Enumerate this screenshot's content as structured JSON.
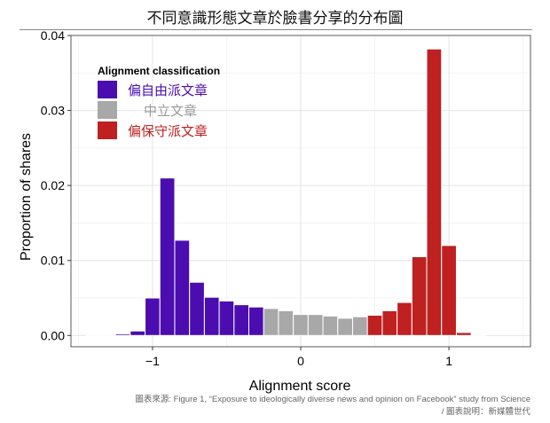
{
  "title": "不同意識形態文章於臉書分享的分布圖",
  "source": {
    "line1": "圖表來源: Figure 1, “Exposure to ideologically diverse news and opinion on Facebook” study from Science",
    "line2": "/ 圖表說明：新媒體世代"
  },
  "chart_data": {
    "type": "bar",
    "xlabel": "Alignment score",
    "ylabel": "Proportion of shares",
    "xlim": [
      -1.55,
      1.55
    ],
    "ylim": [
      -0.0015,
      0.04
    ],
    "xticks": [
      -1,
      0,
      1
    ],
    "xtick_labels": [
      "−1",
      "0",
      "1"
    ],
    "yticks": [
      0.0,
      0.01,
      0.02,
      0.03,
      0.04
    ],
    "ytick_labels": [
      "0.00",
      "0.01",
      "0.02",
      "0.03",
      "0.04"
    ],
    "grid": true,
    "bin_width": 0.1,
    "legend": {
      "title": "Alignment classification",
      "position": "top-left",
      "entries": [
        {
          "label": "偏自由派文章",
          "color": "#4B0DB0"
        },
        {
          "label": "中立文章",
          "color": "#A8A8A8"
        },
        {
          "label": "偏保守派文章",
          "color": "#BF2020"
        }
      ]
    },
    "series": [
      {
        "name": "偏自由派文章",
        "color": "#4B0DB0",
        "x": [
          -1.4,
          -1.3,
          -1.2,
          -1.1,
          -1.0,
          -0.9,
          -0.8,
          -0.7,
          -0.6,
          -0.5,
          -0.4,
          -0.3
        ],
        "values": [
          0.0001,
          0.0001,
          0.0002,
          0.0006,
          0.005,
          0.021,
          0.0127,
          0.0071,
          0.0051,
          0.0046,
          0.0041,
          0.0038
        ]
      },
      {
        "name": "中立文章",
        "color": "#A8A8A8",
        "x": [
          -0.2,
          -0.1,
          0.0,
          0.1,
          0.2,
          0.3,
          0.4
        ],
        "values": [
          0.0036,
          0.0033,
          0.0028,
          0.0028,
          0.0026,
          0.0023,
          0.0025
        ]
      },
      {
        "name": "偏保守派文章",
        "color": "#BF2020",
        "x": [
          0.5,
          0.6,
          0.7,
          0.8,
          0.9,
          1.0,
          1.1,
          1.2
        ],
        "values": [
          0.0027,
          0.0033,
          0.0044,
          0.0105,
          0.0382,
          0.012,
          0.0004,
          0.0001
        ]
      }
    ]
  }
}
